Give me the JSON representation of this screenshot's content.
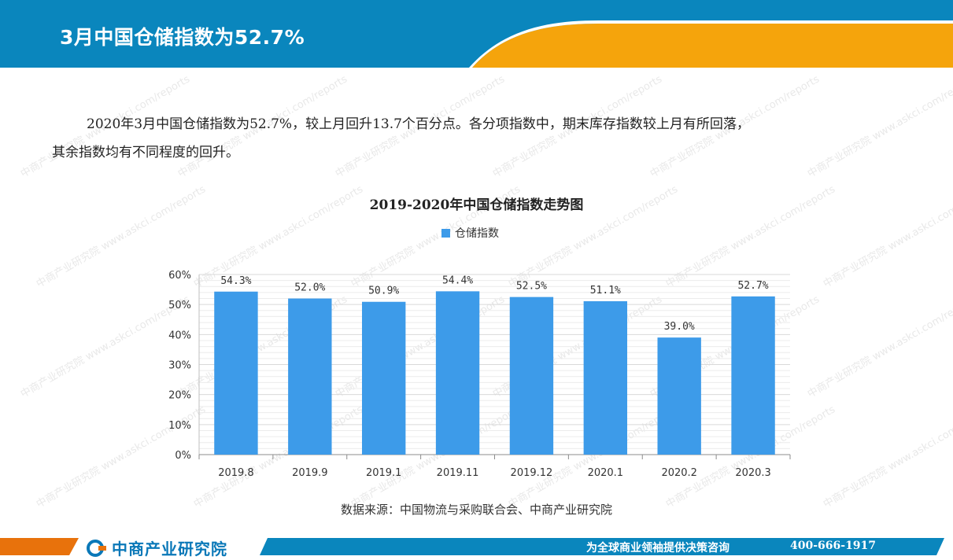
{
  "header": {
    "title": "3月中国仓储指数为52.7%",
    "colors": {
      "bar": "#0a86bd",
      "accent": "#f5a40c"
    }
  },
  "intro": {
    "line1": "2020年3月中国仓储指数为52.7%，较上月回升13.7个百分点。各分项指数中，期末库存指数较上月有所回落，",
    "line2": "其余指数均有不同程度的回升。"
  },
  "chart_data": {
    "type": "bar",
    "title": "2019-2020年中国仓储指数走势图",
    "categories": [
      "2019.8",
      "2019.9",
      "2019.1",
      "2019.11",
      "2019.12",
      "2020.1",
      "2020.2",
      "2020.3"
    ],
    "series": [
      {
        "name": "仓储指数",
        "values": [
          54.3,
          52.0,
          50.9,
          54.4,
          52.5,
          51.1,
          39.0,
          52.7
        ],
        "color": "#3d9be9"
      }
    ],
    "data_labels": [
      "54.3%",
      "52.0%",
      "50.9%",
      "54.4%",
      "52.5%",
      "51.1%",
      "39.0%",
      "52.7%"
    ],
    "y_ticks": [
      "0%",
      "10%",
      "20%",
      "30%",
      "40%",
      "50%",
      "60%"
    ],
    "ylim": [
      0,
      60
    ],
    "grid": true,
    "legend_position": "top"
  },
  "source": "数据来源：中国物流与采购联合会、中商产业研究院",
  "footer": {
    "logo_text": "中商产业研究院",
    "slogan": "为全球商业领袖提供决策咨询",
    "phone": "400-666-1917",
    "colors": {
      "bar": "#0a86bd",
      "accent": "#e8720c"
    }
  },
  "watermark": {
    "text": "中商产业研究院",
    "url": "www.askci.com/reports"
  }
}
